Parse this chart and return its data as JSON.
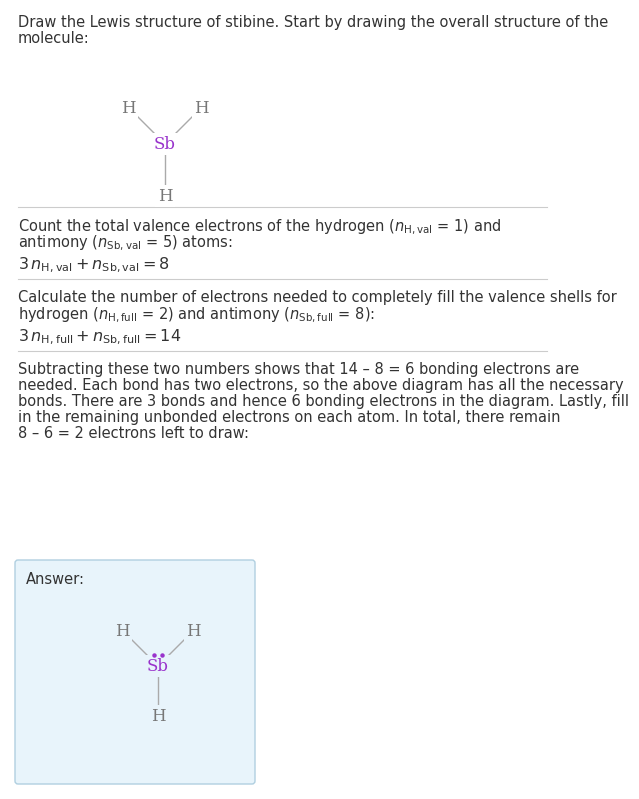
{
  "bg_color": "#ffffff",
  "text_color": "#333333",
  "sb_color": "#9933cc",
  "h_color": "#777777",
  "bond_color": "#aaaaaa",
  "answer_bg": "#e8f4fb",
  "answer_border": "#b0cfe0",
  "font_size_body": 10.5,
  "font_size_eq": 11.5,
  "font_size_answer_label": 10.5,
  "font_size_atom": 12,
  "divider_color": "#cccccc",
  "title_line1": "Draw the Lewis structure of stibine. Start by drawing the overall structure of the",
  "title_line2": "molecule:",
  "s1_line1": "Count the total valence electrons of the hydrogen (",
  "s1_line2": " atoms:",
  "s1_eq": "3 n_{\\mathrm{H,val}} + n_{\\mathrm{Sb,val}} = 8",
  "s2_line1": "Calculate the number of electrons needed to completely fill the valence shells for",
  "s2_line2": "hydrogen (",
  "s2_eq": "3 n_{\\mathrm{H,full}} + n_{\\mathrm{Sb,full}} = 14",
  "s3_text": "Subtracting these two numbers shows that 14 – 8 = 6 bonding electrons are\nneeded. Each bond has two electrons, so the above diagram has all the necessary\nbonds. There are 3 bonds and hence 6 bonding electrons in the diagram. Lastly, fill\nin the remaining unbonded electrons on each atom. In total, there remain\n8 – 6 = 2 electrons left to draw:",
  "answer_label": "Answer:"
}
